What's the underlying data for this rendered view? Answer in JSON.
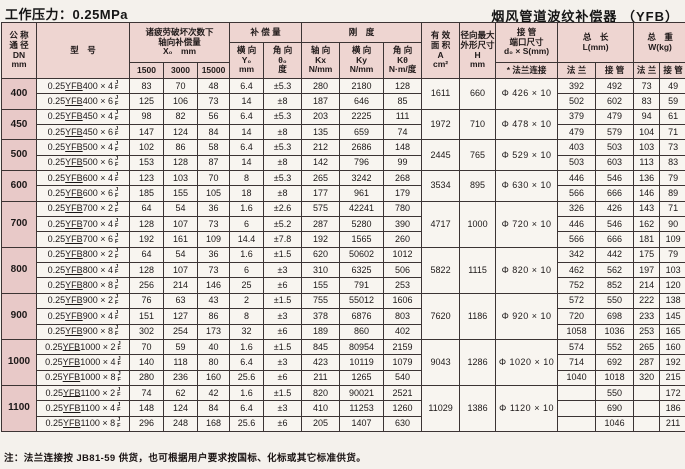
{
  "page": {
    "pressure_title": "工作压力：0.25MPa",
    "product_title": "烟风管道波纹补偿器 （YFB）",
    "footnote": "注：法兰连接按 JB81-59 供货，也可根据用户要求按国标、化标或其它标准供货。"
  },
  "header": {
    "dn": "公 称\n通 径\nDN\nmm",
    "model": "型　号",
    "fatigue_title": "诸疲劳破坏次数下\n轴向补偿量\nX₀　mm",
    "fatigue_cols": [
      "1500",
      "3000",
      "15000"
    ],
    "comp_title": "补 偿 量",
    "comp_lateral": "横 向\nY₀\nmm",
    "comp_angular": "角 向\nθ₀\n度",
    "rig_title": "刚　度",
    "rig_axial": "轴 向\nKx\nN/mm",
    "rig_lateral": "横 向\nKy\nN/mm",
    "rig_angular": "角 向\nKθ\nN·m/度",
    "area": "有 效\n面 积\nA\ncm²",
    "radial": "径向最大\n外形尺寸\nH\nmm",
    "port_title": "接 管\n端口尺寸\nd₀ × S(mm)",
    "port_note": "* 法兰连接",
    "length_title": "总　长\nL(mm)",
    "length_flange": "法 兰",
    "length_pipe": "接 管",
    "weight_title": "总　重\nW(kg)",
    "weight_flange": "法 兰",
    "weight_pipe": "接 管"
  },
  "model_suffix": {
    "top": "J",
    "bottom": "F"
  },
  "groups": [
    {
      "dn": "400",
      "area": "1611",
      "h": "660",
      "port": "Φ 426 × 10",
      "rows": [
        {
          "model": "0.25YFB400 × 4",
          "x1500": "83",
          "x3000": "70",
          "x15000": "48",
          "y": "6.4",
          "theta": "±5.3",
          "kx": "280",
          "ky": "2180",
          "ktheta": "128",
          "l_flange": "392",
          "l_pipe": "492",
          "w_flange": "73",
          "w_pipe": "49"
        },
        {
          "model": "0.25YFB400 × 6",
          "x1500": "125",
          "x3000": "106",
          "x15000": "73",
          "y": "14",
          "theta": "±8",
          "kx": "187",
          "ky": "646",
          "ktheta": "85",
          "l_flange": "502",
          "l_pipe": "602",
          "w_flange": "83",
          "w_pipe": "59"
        }
      ]
    },
    {
      "dn": "450",
      "area": "1972",
      "h": "710",
      "port": "Φ 478 × 10",
      "rows": [
        {
          "model": "0.25YFB450 × 4",
          "x1500": "98",
          "x3000": "82",
          "x15000": "56",
          "y": "6.4",
          "theta": "±5.3",
          "kx": "203",
          "ky": "2225",
          "ktheta": "111",
          "l_flange": "379",
          "l_pipe": "479",
          "w_flange": "94",
          "w_pipe": "61"
        },
        {
          "model": "0.25YFB450 × 6",
          "x1500": "147",
          "x3000": "124",
          "x15000": "84",
          "y": "14",
          "theta": "±8",
          "kx": "135",
          "ky": "659",
          "ktheta": "74",
          "l_flange": "479",
          "l_pipe": "579",
          "w_flange": "104",
          "w_pipe": "71"
        }
      ]
    },
    {
      "dn": "500",
      "area": "2445",
      "h": "765",
      "port": "Φ 529 × 10",
      "rows": [
        {
          "model": "0.25YFB500 × 4",
          "x1500": "102",
          "x3000": "86",
          "x15000": "58",
          "y": "6.4",
          "theta": "±5.3",
          "kx": "212",
          "ky": "2686",
          "ktheta": "148",
          "l_flange": "403",
          "l_pipe": "503",
          "w_flange": "103",
          "w_pipe": "73"
        },
        {
          "model": "0.25YFB500 × 6",
          "x1500": "153",
          "x3000": "128",
          "x15000": "87",
          "y": "14",
          "theta": "±8",
          "kx": "142",
          "ky": "796",
          "ktheta": "99",
          "l_flange": "503",
          "l_pipe": "603",
          "w_flange": "113",
          "w_pipe": "83"
        }
      ]
    },
    {
      "dn": "600",
      "area": "3534",
      "h": "895",
      "port": "Φ 630 × 10",
      "rows": [
        {
          "model": "0.25YFB600 × 4",
          "x1500": "123",
          "x3000": "103",
          "x15000": "70",
          "y": "8",
          "theta": "±5.3",
          "kx": "265",
          "ky": "3242",
          "ktheta": "268",
          "l_flange": "446",
          "l_pipe": "546",
          "w_flange": "136",
          "w_pipe": "79"
        },
        {
          "model": "0.25YFB600 × 6",
          "x1500": "185",
          "x3000": "155",
          "x15000": "105",
          "y": "18",
          "theta": "±8",
          "kx": "177",
          "ky": "961",
          "ktheta": "179",
          "l_flange": "566",
          "l_pipe": "666",
          "w_flange": "146",
          "w_pipe": "89"
        }
      ]
    },
    {
      "dn": "700",
      "area": "4717",
      "h": "1000",
      "port": "Φ 720 × 10",
      "rows": [
        {
          "model": "0.25YFB700 × 2",
          "x1500": "64",
          "x3000": "54",
          "x15000": "36",
          "y": "1.6",
          "theta": "±2.6",
          "kx": "575",
          "ky": "42241",
          "ktheta": "780",
          "l_flange": "326",
          "l_pipe": "426",
          "w_flange": "143",
          "w_pipe": "71"
        },
        {
          "model": "0.25YFB700 × 4",
          "x1500": "128",
          "x3000": "107",
          "x15000": "73",
          "y": "6",
          "theta": "±5.2",
          "kx": "287",
          "ky": "5280",
          "ktheta": "390",
          "l_flange": "446",
          "l_pipe": "546",
          "w_flange": "162",
          "w_pipe": "90"
        },
        {
          "model": "0.25YFB700 × 6",
          "x1500": "192",
          "x3000": "161",
          "x15000": "109",
          "y": "14.4",
          "theta": "±7.8",
          "kx": "192",
          "ky": "1565",
          "ktheta": "260",
          "l_flange": "566",
          "l_pipe": "666",
          "w_flange": "181",
          "w_pipe": "109"
        }
      ]
    },
    {
      "dn": "800",
      "area": "5822",
      "h": "1115",
      "port": "Φ 820 × 10",
      "rows": [
        {
          "model": "0.25YFB800 × 2",
          "x1500": "64",
          "x3000": "54",
          "x15000": "36",
          "y": "1.6",
          "theta": "±1.5",
          "kx": "620",
          "ky": "50602",
          "ktheta": "1012",
          "l_flange": "342",
          "l_pipe": "442",
          "w_flange": "175",
          "w_pipe": "79"
        },
        {
          "model": "0.25YFB800 × 4",
          "x1500": "128",
          "x3000": "107",
          "x15000": "73",
          "y": "6",
          "theta": "±3",
          "kx": "310",
          "ky": "6325",
          "ktheta": "506",
          "l_flange": "462",
          "l_pipe": "562",
          "w_flange": "197",
          "w_pipe": "103"
        },
        {
          "model": "0.25YFB800 × 8",
          "x1500": "256",
          "x3000": "214",
          "x15000": "146",
          "y": "25",
          "theta": "±6",
          "kx": "155",
          "ky": "791",
          "ktheta": "253",
          "l_flange": "752",
          "l_pipe": "852",
          "w_flange": "214",
          "w_pipe": "120"
        }
      ]
    },
    {
      "dn": "900",
      "area": "7620",
      "h": "1186",
      "port": "Φ 920 × 10",
      "rows": [
        {
          "model": "0.25YFB900 × 2",
          "x1500": "76",
          "x3000": "63",
          "x15000": "43",
          "y": "2",
          "theta": "±1.5",
          "kx": "755",
          "ky": "55012",
          "ktheta": "1606",
          "l_flange": "572",
          "l_pipe": "550",
          "w_flange": "222",
          "w_pipe": "138"
        },
        {
          "model": "0.25YFB900 × 4",
          "x1500": "151",
          "x3000": "127",
          "x15000": "86",
          "y": "8",
          "theta": "±3",
          "kx": "378",
          "ky": "6876",
          "ktheta": "803",
          "l_flange": "720",
          "l_pipe": "698",
          "w_flange": "233",
          "w_pipe": "145"
        },
        {
          "model": "0.25YFB900 × 8",
          "x1500": "302",
          "x3000": "254",
          "x15000": "173",
          "y": "32",
          "theta": "±6",
          "kx": "189",
          "ky": "860",
          "ktheta": "402",
          "l_flange": "1058",
          "l_pipe": "1036",
          "w_flange": "253",
          "w_pipe": "165"
        }
      ]
    },
    {
      "dn": "1000",
      "area": "9043",
      "h": "1286",
      "port": "Φ 1020 × 10",
      "rows": [
        {
          "model": "0.25YFB1000 × 2",
          "x1500": "70",
          "x3000": "59",
          "x15000": "40",
          "y": "1.6",
          "theta": "±1.5",
          "kx": "845",
          "ky": "80954",
          "ktheta": "2159",
          "l_flange": "574",
          "l_pipe": "552",
          "w_flange": "265",
          "w_pipe": "160"
        },
        {
          "model": "0.25YFB1000 × 4",
          "x1500": "140",
          "x3000": "118",
          "x15000": "80",
          "y": "6.4",
          "theta": "±3",
          "kx": "423",
          "ky": "10119",
          "ktheta": "1079",
          "l_flange": "714",
          "l_pipe": "692",
          "w_flange": "287",
          "w_pipe": "192"
        },
        {
          "model": "0.25YFB1000 × 8",
          "x1500": "280",
          "x3000": "236",
          "x15000": "160",
          "y": "25.6",
          "theta": "±6",
          "kx": "211",
          "ky": "1265",
          "ktheta": "540",
          "l_flange": "1040",
          "l_pipe": "1018",
          "w_flange": "320",
          "w_pipe": "215"
        }
      ]
    },
    {
      "dn": "1100",
      "area": "11029",
      "h": "1386",
      "port": "Φ 1120 × 10",
      "rows": [
        {
          "model": "0.25YFB1100 × 2",
          "x1500": "74",
          "x3000": "62",
          "x15000": "42",
          "y": "1.6",
          "theta": "±1.5",
          "kx": "820",
          "ky": "90021",
          "ktheta": "2521",
          "l_flange": "",
          "l_pipe": "550",
          "w_flange": "",
          "w_pipe": "172"
        },
        {
          "model": "0.25YFB1100 × 4",
          "x1500": "148",
          "x3000": "124",
          "x15000": "84",
          "y": "6.4",
          "theta": "±3",
          "kx": "410",
          "ky": "11253",
          "ktheta": "1260",
          "l_flange": "",
          "l_pipe": "690",
          "w_flange": "",
          "w_pipe": "186"
        },
        {
          "model": "0.25YFB1100 × 8",
          "x1500": "296",
          "x3000": "248",
          "x15000": "168",
          "y": "25.6",
          "theta": "±6",
          "kx": "205",
          "ky": "1407",
          "ktheta": "630",
          "l_flange": "",
          "l_pipe": "1046",
          "w_flange": "",
          "w_pipe": "211"
        }
      ]
    }
  ]
}
